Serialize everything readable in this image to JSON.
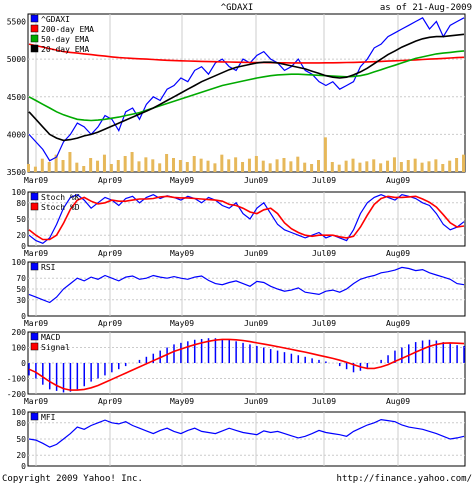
{
  "chart_data": {
    "title": "^GDAXI",
    "asof": "as of 21-Aug-2009",
    "footer_left": "Copyright 2009 Yahoo! Inc.",
    "footer_right": "http://finance.yahoo.com/",
    "months": [
      "Mar09",
      "Apr09",
      "May09",
      "Jun09",
      "Jul09",
      "Aug09"
    ],
    "colors": {
      "price": "#0000ff",
      "ema200": "#ff0000",
      "ema50": "#00aa00",
      "ema20": "#000000",
      "volume": "#e6b85a",
      "grid": "#cccccc",
      "bg": "#ffffff"
    },
    "panels": [
      {
        "id": "price",
        "type": "line",
        "yticks": [
          "5500",
          "5000",
          "4500",
          "4000",
          "3500"
        ],
        "ylim": [
          3500,
          5600
        ],
        "series": [
          {
            "name": "^GDAXI",
            "color": "#0000ff",
            "values": [
              4000,
              3900,
              3800,
              3650,
              3700,
              3900,
              4000,
              4150,
              4100,
              4000,
              4100,
              4250,
              4200,
              4050,
              4300,
              4350,
              4200,
              4400,
              4500,
              4450,
              4600,
              4650,
              4750,
              4700,
              4850,
              4900,
              4800,
              4950,
              5000,
              4900,
              4850,
              5000,
              4950,
              5050,
              5100,
              5000,
              4950,
              4850,
              4900,
              5000,
              4850,
              4800,
              4700,
              4650,
              4700,
              4600,
              4650,
              4700,
              4900,
              5000,
              5150,
              5200,
              5300,
              5350,
              5400,
              5450,
              5500,
              5550,
              5400,
              5500,
              5300,
              5450,
              5500,
              5550
            ]
          },
          {
            "name": "200-day EMA",
            "color": "#ff0000",
            "values": [
              5200,
              5180,
              5160,
              5140,
              5120,
              5100,
              5090,
              5080,
              5070,
              5060,
              5050,
              5040,
              5030,
              5020,
              5015,
              5010,
              5005,
              5000,
              4995,
              4990,
              4985,
              4980,
              4978,
              4975,
              4972,
              4970,
              4968,
              4966,
              4964,
              4962,
              4960,
              4958,
              4956,
              4955,
              4954,
              4953,
              4952,
              4951,
              4950,
              4950,
              4950,
              4950,
              4950,
              4951,
              4952,
              4953,
              4955,
              4957,
              4960,
              4963,
              4966,
              4970,
              4974,
              4978,
              4982,
              4986,
              4990,
              4995,
              5000,
              5005,
              5010,
              5015,
              5020,
              5025
            ]
          },
          {
            "name": "50-day EMA",
            "color": "#00aa00",
            "values": [
              4500,
              4450,
              4400,
              4350,
              4300,
              4260,
              4230,
              4200,
              4190,
              4185,
              4190,
              4200,
              4215,
              4230,
              4250,
              4270,
              4290,
              4320,
              4350,
              4380,
              4410,
              4440,
              4470,
              4500,
              4530,
              4560,
              4590,
              4620,
              4650,
              4670,
              4690,
              4710,
              4730,
              4750,
              4765,
              4780,
              4790,
              4795,
              4800,
              4800,
              4795,
              4790,
              4785,
              4780,
              4775,
              4770,
              4765,
              4770,
              4780,
              4800,
              4830,
              4860,
              4890,
              4920,
              4950,
              4980,
              5010,
              5030,
              5050,
              5070,
              5080,
              5090,
              5100,
              5110
            ]
          },
          {
            "name": "20-day EMA",
            "color": "#000000",
            "values": [
              4300,
              4200,
              4100,
              4000,
              3950,
              3920,
              3930,
              3950,
              3980,
              4000,
              4030,
              4070,
              4110,
              4150,
              4190,
              4230,
              4270,
              4310,
              4350,
              4400,
              4450,
              4500,
              4550,
              4600,
              4650,
              4700,
              4740,
              4780,
              4820,
              4860,
              4890,
              4910,
              4930,
              4950,
              4960,
              4960,
              4950,
              4930,
              4910,
              4890,
              4870,
              4840,
              4810,
              4780,
              4760,
              4750,
              4760,
              4790,
              4830,
              4880,
              4940,
              5000,
              5060,
              5110,
              5160,
              5200,
              5240,
              5270,
              5290,
              5300,
              5300,
              5310,
              5320,
              5330
            ]
          }
        ],
        "volume": [
          120,
          80,
          200,
          150,
          260,
          180,
          300,
          140,
          90,
          210,
          170,
          260,
          120,
          180,
          240,
          300,
          160,
          220,
          190,
          130,
          270,
          210,
          180,
          150,
          240,
          200,
          170,
          130,
          260,
          190,
          220,
          150,
          200,
          240,
          170,
          130,
          190,
          210,
          160,
          230,
          140,
          120,
          180,
          520,
          150,
          110,
          170,
          200,
          140,
          160,
          190,
          130,
          170,
          220,
          150,
          180,
          200,
          140,
          160,
          190,
          120,
          170,
          210,
          260
        ]
      },
      {
        "id": "stoch",
        "type": "line",
        "yticks": [
          "100",
          "80",
          "50",
          "20",
          "0"
        ],
        "ylim": [
          0,
          100
        ],
        "series": [
          {
            "name": "Stoch %K",
            "color": "#0000ff",
            "values": [
              20,
              10,
              5,
              15,
              40,
              70,
              90,
              95,
              85,
              70,
              80,
              90,
              85,
              75,
              88,
              92,
              80,
              90,
              95,
              88,
              93,
              90,
              85,
              92,
              88,
              80,
              90,
              85,
              75,
              70,
              80,
              60,
              50,
              70,
              80,
              60,
              40,
              30,
              25,
              20,
              15,
              20,
              25,
              15,
              20,
              15,
              10,
              30,
              60,
              80,
              90,
              95,
              90,
              85,
              95,
              92,
              88,
              80,
              75,
              60,
              40,
              30,
              35,
              45
            ]
          },
          {
            "name": "Stoch %D",
            "color": "#ff0000",
            "values": [
              30,
              20,
              12,
              12,
              20,
              42,
              68,
              85,
              90,
              83,
              78,
              80,
              85,
              83,
              83,
              85,
              87,
              87,
              88,
              91,
              92,
              90,
              89,
              89,
              88,
              87,
              86,
              85,
              83,
              77,
              75,
              70,
              63,
              60,
              67,
              70,
              60,
              43,
              32,
              25,
              20,
              18,
              20,
              20,
              20,
              17,
              15,
              18,
              35,
              57,
              77,
              88,
              92,
              90,
              90,
              91,
              92,
              87,
              81,
              72,
              58,
              43,
              35,
              37
            ]
          }
        ]
      },
      {
        "id": "rsi",
        "type": "line",
        "yticks": [
          "100",
          "70",
          "50",
          "30",
          "0"
        ],
        "ylim": [
          0,
          100
        ],
        "series": [
          {
            "name": "RSI",
            "color": "#0000ff",
            "values": [
              40,
              35,
              30,
              25,
              35,
              50,
              60,
              70,
              65,
              72,
              68,
              75,
              70,
              65,
              72,
              74,
              68,
              70,
              75,
              72,
              70,
              73,
              70,
              68,
              72,
              74,
              66,
              60,
              58,
              62,
              65,
              60,
              55,
              64,
              62,
              55,
              50,
              46,
              48,
              52,
              44,
              42,
              40,
              46,
              48,
              44,
              50,
              60,
              68,
              72,
              75,
              80,
              82,
              85,
              90,
              88,
              84,
              86,
              80,
              76,
              72,
              68,
              60,
              58
            ]
          }
        ]
      },
      {
        "id": "macd",
        "type": "bar",
        "yticks": [
          "200",
          "100",
          "0",
          "-100",
          "-200"
        ],
        "ylim": [
          -200,
          200
        ],
        "series": [
          {
            "name": "MACD",
            "color": "#0000ff",
            "values": [
              -80,
              -100,
              -140,
              -170,
              -180,
              -190,
              -185,
              -170,
              -150,
              -120,
              -100,
              -80,
              -60,
              -40,
              -20,
              0,
              20,
              40,
              60,
              80,
              100,
              120,
              130,
              140,
              150,
              155,
              160,
              160,
              155,
              150,
              140,
              130,
              120,
              110,
              100,
              90,
              80,
              70,
              60,
              50,
              40,
              30,
              20,
              10,
              0,
              -20,
              -40,
              -60,
              -50,
              -30,
              0,
              20,
              50,
              80,
              100,
              120,
              135,
              145,
              150,
              145,
              135,
              125,
              115,
              110
            ]
          },
          {
            "name": "Signal",
            "color": "#ff0000",
            "values": [
              -40,
              -60,
              -90,
              -120,
              -145,
              -165,
              -175,
              -175,
              -170,
              -160,
              -145,
              -125,
              -105,
              -85,
              -65,
              -45,
              -25,
              -5,
              15,
              35,
              55,
              75,
              90,
              105,
              118,
              130,
              140,
              148,
              152,
              152,
              150,
              145,
              138,
              130,
              122,
              114,
              106,
              97,
              88,
              79,
              70,
              60,
              50,
              40,
              30,
              18,
              5,
              -10,
              -25,
              -35,
              -35,
              -25,
              -10,
              10,
              30,
              50,
              70,
              90,
              108,
              120,
              128,
              130,
              128,
              125
            ]
          }
        ]
      },
      {
        "id": "mfi",
        "type": "line",
        "yticks": [
          "100",
          "80",
          "50",
          "20",
          "0"
        ],
        "ylim": [
          0,
          100
        ],
        "series": [
          {
            "name": "MFI",
            "color": "#0000ff",
            "values": [
              50,
              48,
              42,
              35,
              40,
              50,
              60,
              72,
              68,
              75,
              80,
              85,
              80,
              78,
              82,
              75,
              70,
              65,
              60,
              66,
              70,
              64,
              60,
              66,
              70,
              64,
              62,
              60,
              65,
              70,
              66,
              62,
              60,
              58,
              65,
              62,
              64,
              60,
              56,
              52,
              55,
              60,
              66,
              62,
              60,
              58,
              55,
              64,
              70,
              76,
              80,
              86,
              84,
              82,
              76,
              72,
              70,
              68,
              64,
              60,
              55,
              50,
              52,
              55
            ]
          }
        ]
      }
    ]
  }
}
